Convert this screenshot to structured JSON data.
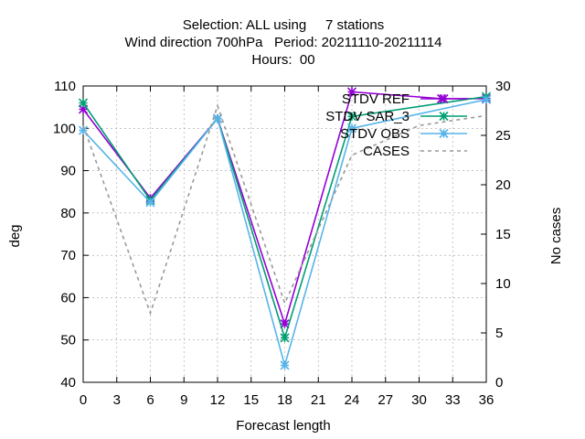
{
  "chart_data": {
    "type": "line",
    "title_lines": [
      "Selection: ALL using     7 stations",
      "Wind direction 700hPa   Period: 20211110-20211114",
      "Hours:  00"
    ],
    "xlabel": "Forecast length",
    "ylabel": "deg",
    "y2label": "No cases",
    "xlim": [
      0,
      36
    ],
    "ylim": [
      40,
      110
    ],
    "y2lim": [
      0,
      30
    ],
    "x_ticks": [
      0,
      3,
      6,
      9,
      12,
      15,
      18,
      21,
      24,
      27,
      30,
      33,
      36
    ],
    "y_ticks": [
      40,
      50,
      60,
      70,
      80,
      90,
      100,
      110
    ],
    "y2_ticks": [
      0,
      5,
      10,
      15,
      20,
      25,
      30
    ],
    "grid": true,
    "legend_position": "top-right",
    "series": [
      {
        "name": "STDV REF",
        "axis": "left",
        "color": "#9400d3",
        "marker": "star",
        "x": [
          0,
          6,
          12,
          18,
          24,
          32,
          36
        ],
        "values": [
          104.5,
          83.5,
          102.3,
          53.8,
          108.6,
          107.0,
          107.0
        ]
      },
      {
        "name": "STDV SAR_3",
        "axis": "left",
        "color": "#009e73",
        "marker": "star",
        "x": [
          0,
          6,
          12,
          18,
          24,
          36
        ],
        "values": [
          106.0,
          83.0,
          102.3,
          50.5,
          102.8,
          107.5
        ]
      },
      {
        "name": "STDV OBS",
        "axis": "left",
        "color": "#56b4e9",
        "marker": "star",
        "x": [
          0,
          6,
          12,
          18,
          24,
          36
        ],
        "values": [
          99.5,
          82.5,
          102.3,
          44.0,
          100.0,
          106.8
        ]
      },
      {
        "name": "CASES",
        "axis": "right",
        "color": "#999999",
        "marker": "none",
        "dashed": true,
        "x": [
          0,
          6,
          12,
          18,
          24,
          30,
          36
        ],
        "values": [
          26,
          7,
          28,
          8,
          23,
          26,
          27
        ]
      }
    ]
  }
}
